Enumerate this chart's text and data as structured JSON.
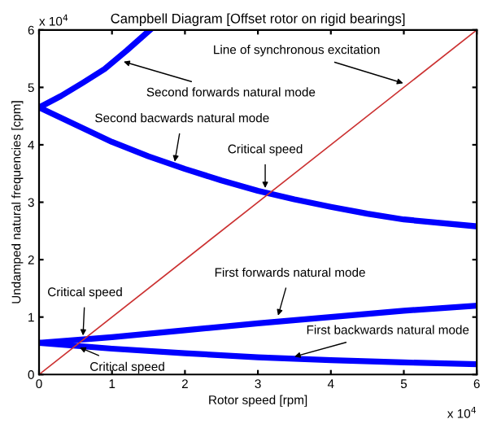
{
  "chart_data": {
    "type": "line",
    "title": "Campbell Diagram [Offset rotor on rigid bearings]",
    "xlabel": "Rotor speed [rpm]",
    "ylabel": "Undamped natural frequencies [cpm]",
    "series": [
      {
        "color": "#0000ff",
        "x": [
          0,
          0.3,
          0.6,
          0.9,
          1.2,
          1.52
        ],
        "values": [
          4.65,
          4.85,
          5.08,
          5.32,
          5.64,
          6.0
        ]
      },
      {
        "color": "#0000ff",
        "x": [
          0,
          0.5,
          1.0,
          1.5,
          2.0,
          2.5,
          3.0,
          3.5,
          4.0,
          4.5,
          5.0,
          6.0
        ],
        "values": [
          4.65,
          4.35,
          4.05,
          3.8,
          3.58,
          3.38,
          3.2,
          3.05,
          2.92,
          2.8,
          2.7,
          2.58
        ]
      },
      {
        "color": "#0000ff",
        "x": [
          0,
          1,
          2,
          3,
          4,
          5,
          6
        ],
        "values": [
          0.55,
          0.65,
          0.77,
          0.89,
          1.0,
          1.11,
          1.2
        ]
      },
      {
        "color": "#0000ff",
        "x": [
          0,
          1,
          2,
          3,
          4,
          5,
          6
        ],
        "values": [
          0.55,
          0.45,
          0.37,
          0.3,
          0.25,
          0.21,
          0.18
        ]
      },
      {
        "color": "#cc3333",
        "x": [
          0,
          6
        ],
        "values": [
          0,
          6
        ]
      }
    ],
    "xlim": [
      0,
      6
    ],
    "ylim": [
      0,
      6
    ],
    "xticks": [
      0,
      1,
      2,
      3,
      4,
      5,
      6
    ],
    "yticks": [
      0,
      1,
      2,
      3,
      4,
      5,
      6
    ],
    "grid": false,
    "legend": false,
    "annotations": [
      {
        "text": "Line of synchronous excitation",
        "x": 5.05,
        "y": 5.05
      },
      {
        "text": "Second forwards natural mode",
        "x": 1.1,
        "y": 5.47
      },
      {
        "text": "Second bacwards natural mode",
        "x": 1.85,
        "y": 3.63
      },
      {
        "text": "Critical speed",
        "x": 3.1,
        "y": 3.17
      },
      {
        "text": "First forwards natural mode",
        "x": 3.26,
        "y": 0.95
      },
      {
        "text": "First backwards natural mode",
        "x": 3.44,
        "y": 0.29
      },
      {
        "text": "Critical speed",
        "x": 0.6,
        "y": 0.6
      },
      {
        "text": "Critical speed",
        "x": 0.5,
        "y": 0.5
      },
      "x 10$^{4}$",
      "x 10$^{4}$"
    ]
  }
}
